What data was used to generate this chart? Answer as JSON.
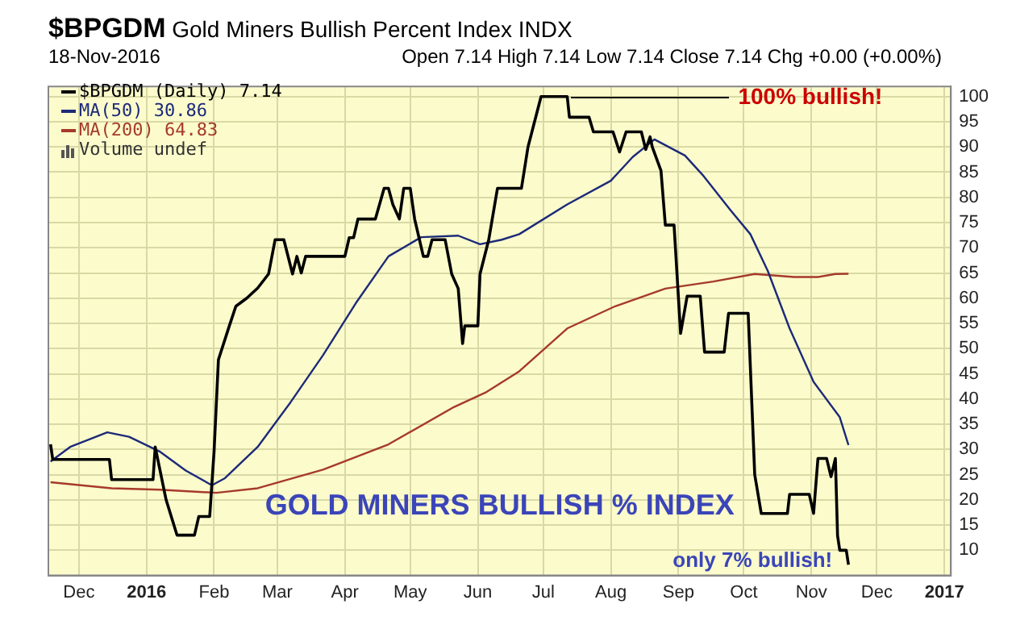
{
  "chart_data": {
    "type": "line",
    "title": "$BPGDM Gold Miners Bullish Percent Index INDX",
    "subtitle": "18-Nov-2016",
    "annotations": [
      "Open 7.14 High 7.14 Low 7.14 Close 7.14 Chg +0.00 (+0.00%)",
      "Volume undef",
      "GOLD MINERS BULLISH % INDEX",
      {
        "text": "100% bullish!",
        "x": "2016-07-12",
        "y": 100
      },
      {
        "text": "only 7% bullish!",
        "x": "2016-11-18",
        "y": 7.14
      }
    ],
    "xlim": [
      "2015-11-17",
      "2017-01-04"
    ],
    "xticks": [
      {
        "value": "2015-12-01",
        "label": "Dec"
      },
      {
        "value": "2016-01-01",
        "label": "2016"
      },
      {
        "value": "2016-02-01",
        "label": "Feb"
      },
      {
        "value": "2016-03-01",
        "label": "Mar"
      },
      {
        "value": "2016-04-01",
        "label": "Apr"
      },
      {
        "value": "2016-05-01",
        "label": "May"
      },
      {
        "value": "2016-06-01",
        "label": "Jun"
      },
      {
        "value": "2016-07-01",
        "label": "Jul"
      },
      {
        "value": "2016-08-01",
        "label": "Aug"
      },
      {
        "value": "2016-09-01",
        "label": "Sep"
      },
      {
        "value": "2016-10-01",
        "label": "Oct"
      },
      {
        "value": "2016-11-01",
        "label": "Nov"
      },
      {
        "value": "2016-12-01",
        "label": "Dec"
      },
      {
        "value": "2017-01-01",
        "label": "2017"
      }
    ],
    "ylim": [
      5,
      102
    ],
    "yticks": [
      10,
      15,
      20,
      25,
      30,
      35,
      40,
      45,
      50,
      55,
      60,
      65,
      70,
      75,
      80,
      85,
      90,
      95,
      100
    ],
    "grid": true,
    "legend": "top left",
    "marker": "none",
    "line_style": "solid",
    "series": [
      {
        "name": "$BPGDM (Daily) 7.14",
        "color": "#000000",
        "x": [
          "2015-11-18",
          "2015-11-19",
          "2015-12-15",
          "2015-12-16",
          "2016-01-04",
          "2016-01-05",
          "2016-01-10",
          "2016-01-15",
          "2016-01-23",
          "2016-01-25",
          "2016-01-30",
          "2016-02-01",
          "2016-02-03",
          "2016-02-08",
          "2016-02-11",
          "2016-02-16",
          "2016-02-21",
          "2016-02-26",
          "2016-02-29",
          "2016-03-04",
          "2016-03-08",
          "2016-03-10",
          "2016-03-12",
          "2016-03-14",
          "2016-04-01",
          "2016-04-03",
          "2016-04-05",
          "2016-04-07",
          "2016-04-15",
          "2016-04-19",
          "2016-04-21",
          "2016-04-23",
          "2016-04-26",
          "2016-04-28",
          "2016-05-01",
          "2016-05-03",
          "2016-05-07",
          "2016-05-09",
          "2016-05-11",
          "2016-05-17",
          "2016-05-20",
          "2016-05-23",
          "2016-05-25",
          "2016-05-26",
          "2016-06-01",
          "2016-06-02",
          "2016-06-06",
          "2016-06-10",
          "2016-06-21",
          "2016-06-24",
          "2016-06-27",
          "2016-06-30",
          "2016-07-12",
          "2016-07-13",
          "2016-07-22",
          "2016-07-24",
          "2016-08-02",
          "2016-08-05",
          "2016-08-08",
          "2016-08-15",
          "2016-08-17",
          "2016-08-19",
          "2016-08-20",
          "2016-08-24",
          "2016-08-26",
          "2016-08-30",
          "2016-09-02",
          "2016-09-05",
          "2016-09-11",
          "2016-09-13",
          "2016-09-22",
          "2016-09-24",
          "2016-10-03",
          "2016-10-06",
          "2016-10-09",
          "2016-10-21",
          "2016-10-22",
          "2016-10-31",
          "2016-11-02",
          "2016-11-04",
          "2016-11-08",
          "2016-11-10",
          "2016-11-12",
          "2016-11-13",
          "2016-11-14",
          "2016-11-17",
          "2016-11-18"
        ],
        "values": [
          31,
          28,
          28,
          24,
          24,
          30.5,
          20,
          13,
          13,
          16.7,
          16.7,
          29.6,
          47.8,
          54.5,
          58.4,
          60,
          62,
          64.8,
          71.6,
          71.6,
          64.8,
          68.3,
          65,
          68.3,
          68.3,
          72,
          72,
          75.7,
          75.7,
          81.8,
          81.8,
          78.6,
          75.7,
          81.8,
          81.8,
          75.7,
          68.3,
          68.3,
          71.6,
          71.6,
          64.8,
          61.9,
          51,
          54.5,
          54.5,
          64.8,
          71.6,
          81.8,
          81.8,
          90,
          95,
          100,
          100,
          95.9,
          95.9,
          93,
          93,
          89,
          93,
          93,
          89.5,
          92,
          90,
          85.3,
          74.5,
          74.5,
          53,
          60.4,
          60.4,
          49.3,
          49.3,
          57,
          57,
          25,
          17.3,
          17.3,
          21.1,
          21.1,
          17.3,
          28.2,
          28.2,
          24.6,
          28.2,
          12.9,
          10,
          10,
          7.14
        ]
      },
      {
        "name": "MA(50) 30.86",
        "color": "#1c2a78",
        "x": [
          "2015-11-18",
          "2015-11-27",
          "2015-12-14",
          "2015-12-24",
          "2016-01-07",
          "2016-01-19",
          "2016-01-31",
          "2016-02-06",
          "2016-02-21",
          "2016-03-07",
          "2016-03-22",
          "2016-04-06",
          "2016-04-21",
          "2016-05-06",
          "2016-05-23",
          "2016-06-02",
          "2016-06-12",
          "2016-06-20",
          "2016-07-12",
          "2016-08-01",
          "2016-08-11",
          "2016-08-21",
          "2016-09-04",
          "2016-09-12",
          "2016-09-25",
          "2016-10-04",
          "2016-10-12",
          "2016-10-22",
          "2016-11-02",
          "2016-11-14",
          "2016-11-18"
        ],
        "values": [
          27.6,
          30.5,
          33.4,
          32.5,
          29.6,
          25.8,
          22.9,
          24.3,
          30.5,
          39.3,
          48.7,
          59,
          68.3,
          72.1,
          72.4,
          70.7,
          71.6,
          72.7,
          78.6,
          83.3,
          88,
          91.5,
          88.3,
          84.5,
          77.4,
          72.7,
          65.4,
          54,
          43.4,
          36.4,
          30.86
        ]
      },
      {
        "name": "MA(200) 64.83",
        "color": "#a63a2a",
        "x": [
          "2015-11-18",
          "2015-12-16",
          "2016-01-07",
          "2016-02-02",
          "2016-02-21",
          "2016-03-22",
          "2016-04-21",
          "2016-05-21",
          "2016-06-05",
          "2016-06-20",
          "2016-07-12",
          "2016-08-03",
          "2016-08-26",
          "2016-09-17",
          "2016-10-06",
          "2016-10-24",
          "2016-11-04",
          "2016-11-12",
          "2016-11-18"
        ],
        "values": [
          23.5,
          22.3,
          22,
          21.4,
          22.3,
          26,
          31,
          38.4,
          41.4,
          45.5,
          54,
          58.4,
          61.9,
          63.3,
          64.8,
          64.2,
          64.2,
          64.8,
          64.83
        ]
      }
    ]
  }
}
